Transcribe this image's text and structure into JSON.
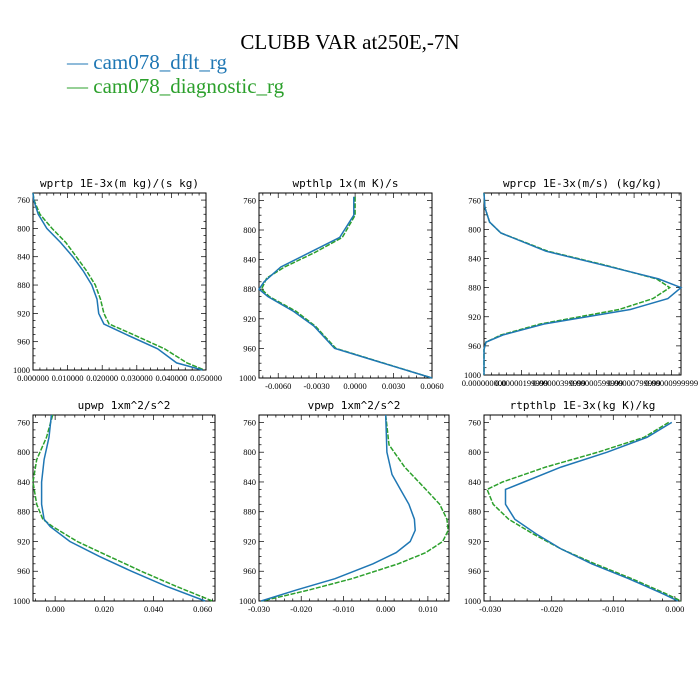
{
  "title": "CLUBB VAR at250E,-7N",
  "legend": [
    {
      "label": "cam078_dflt_rg",
      "color": "#1f77b4"
    },
    {
      "label": "cam078_diagnostic_rg",
      "color": "#2ca02c"
    }
  ],
  "chart_data": [
    {
      "type": "line",
      "title": "wprtp  1E-3x(m kg)/(s kg)",
      "xlim": [
        0,
        0.05
      ],
      "ylim": [
        1000,
        750
      ],
      "xticks": [
        "0.000000",
        "0.010000",
        "0.020000",
        "0.030000",
        "0.040000",
        "0.050000"
      ],
      "xtick_values": [
        0,
        0.01,
        0.02,
        0.03,
        0.04,
        0.05
      ],
      "yticks": [
        "760",
        "800",
        "840",
        "880",
        "920",
        "960",
        "1000"
      ],
      "series": [
        {
          "name": "cam078_dflt_rg",
          "y": [
            750,
            760,
            780,
            800,
            820,
            840,
            860,
            880,
            900,
            920,
            935,
            950,
            970,
            990,
            1000
          ],
          "x": [
            0.0,
            0.0002,
            0.0015,
            0.004,
            0.008,
            0.0115,
            0.0145,
            0.017,
            0.0185,
            0.019,
            0.0205,
            0.027,
            0.036,
            0.0415,
            0.049
          ]
        },
        {
          "name": "cam078_diagnostic_rg",
          "y": [
            750,
            760,
            780,
            800,
            820,
            840,
            860,
            880,
            900,
            920,
            935,
            950,
            970,
            990,
            1000
          ],
          "x": [
            0.0,
            0.0003,
            0.002,
            0.0055,
            0.0095,
            0.0125,
            0.0155,
            0.018,
            0.0195,
            0.0205,
            0.022,
            0.029,
            0.038,
            0.0445,
            0.0495
          ]
        }
      ]
    },
    {
      "type": "line",
      "title": "wpthlp  1x(m K)/s",
      "xlim": [
        -0.0075,
        0.006
      ],
      "ylim": [
        1000,
        750
      ],
      "xticks": [
        "-0.0060",
        "-0.0030",
        "0.0000",
        "0.0030",
        "0.0060"
      ],
      "xtick_values": [
        -0.006,
        -0.003,
        0.0,
        0.003,
        0.006
      ],
      "yticks": [
        "760",
        "800",
        "840",
        "880",
        "920",
        "960",
        "1000"
      ],
      "series": [
        {
          "name": "cam078_dflt_rg",
          "y": [
            755,
            780,
            810,
            830,
            850,
            870,
            880,
            890,
            910,
            930,
            960,
            1000
          ],
          "x": [
            -0.0001,
            -0.0001,
            -0.0012,
            -0.0035,
            -0.0058,
            -0.0071,
            -0.0075,
            -0.0068,
            -0.0048,
            -0.0032,
            -0.0016,
            0.006
          ]
        },
        {
          "name": "cam078_diagnostic_rg",
          "y": [
            755,
            780,
            810,
            830,
            850,
            865,
            880,
            890,
            910,
            930,
            960,
            1000
          ],
          "x": [
            0.0,
            0.0,
            -0.001,
            -0.0031,
            -0.0055,
            -0.0069,
            -0.0073,
            -0.0067,
            -0.0046,
            -0.0031,
            -0.0015,
            0.006
          ]
        }
      ]
    },
    {
      "type": "line",
      "title": "wprcp  1E-3x(m/s) (kg/kg)",
      "xlim": [
        0.0,
        1.05e-05
      ],
      "ylim": [
        1000,
        750
      ],
      "xticks": [
        "0.000000000",
        "0.00000199999",
        "0.00000399999",
        "0.00000599999",
        "0.00000799999",
        "0.00000999999"
      ],
      "xtick_values": [
        0.0,
        2e-06,
        4e-06,
        6e-06,
        8e-06,
        1e-05
      ],
      "yticks": [
        "760",
        "800",
        "840",
        "880",
        "920",
        "960",
        "1000"
      ],
      "series": [
        {
          "name": "cam078_dflt_rg",
          "y": [
            750,
            770,
            790,
            805,
            830,
            850,
            868,
            880,
            895,
            910,
            930,
            945,
            955,
            965,
            1000
          ],
          "x": [
            0.0,
            5e-08,
            3e-07,
            9e-07,
            3.3e-06,
            6.5e-06,
            9.3e-06,
            1.05e-05,
            9.8e-06,
            7.8e-06,
            3.2e-06,
            1e-06,
            1e-07,
            0.0,
            0.0
          ]
        },
        {
          "name": "cam078_diagnostic_rg",
          "y": [
            750,
            770,
            790,
            805,
            830,
            850,
            868,
            880,
            895,
            910,
            930,
            945,
            955,
            965,
            1000
          ],
          "x": [
            0.0,
            5e-08,
            3e-07,
            9e-07,
            3.4e-06,
            6.6e-06,
            9.2e-06,
            9.9e-06,
            9e-06,
            7.2e-06,
            3e-06,
            9e-07,
            1e-07,
            0.0,
            0.0
          ]
        }
      ]
    },
    {
      "type": "line",
      "title": "upwp  1xm^2/s^2",
      "xlim": [
        -0.009,
        0.065
      ],
      "ylim": [
        1000,
        750
      ],
      "xticks": [
        "0.000",
        "0.020",
        "0.040",
        "0.060"
      ],
      "xtick_values": [
        0.0,
        0.02,
        0.04,
        0.06
      ],
      "yticks": [
        "760",
        "800",
        "840",
        "880",
        "920",
        "960",
        "1000"
      ],
      "series": [
        {
          "name": "cam078_dflt_rg",
          "y": [
            750,
            780,
            810,
            840,
            870,
            890,
            900,
            920,
            940,
            960,
            980,
            1000
          ],
          "x": [
            -0.0015,
            -0.0025,
            -0.0045,
            -0.0055,
            -0.0055,
            -0.0045,
            -0.002,
            0.006,
            0.018,
            0.031,
            0.045,
            0.061
          ]
        },
        {
          "name": "cam078_diagnostic_rg",
          "y": [
            750,
            780,
            810,
            840,
            870,
            890,
            900,
            920,
            940,
            960,
            980,
            1000
          ],
          "x": [
            -0.001,
            -0.0035,
            -0.0075,
            -0.009,
            -0.0075,
            -0.005,
            -0.001,
            0.009,
            0.022,
            0.035,
            0.049,
            0.064
          ]
        }
      ]
    },
    {
      "type": "line",
      "title": "vpwp  1xm^2/s^2",
      "xlim": [
        -0.03,
        0.015
      ],
      "ylim": [
        1000,
        750
      ],
      "xticks": [
        "-0.030",
        "-0.020",
        "-0.010",
        "0.000",
        "0.010"
      ],
      "xtick_values": [
        -0.03,
        -0.02,
        -0.01,
        0.0,
        0.01
      ],
      "yticks": [
        "760",
        "800",
        "840",
        "880",
        "920",
        "960",
        "1000"
      ],
      "series": [
        {
          "name": "cam078_dflt_rg",
          "y": [
            750,
            800,
            830,
            850,
            870,
            890,
            905,
            920,
            935,
            950,
            970,
            985,
            1000
          ],
          "x": [
            0.0,
            0.0003,
            0.0015,
            0.0035,
            0.0055,
            0.0068,
            0.007,
            0.0058,
            0.0025,
            -0.003,
            -0.012,
            -0.021,
            -0.0295
          ]
        },
        {
          "name": "cam078_diagnostic_rg",
          "y": [
            750,
            790,
            820,
            850,
            870,
            890,
            905,
            920,
            935,
            950,
            970,
            985,
            1000
          ],
          "x": [
            0.0,
            0.0008,
            0.0045,
            0.0095,
            0.0128,
            0.0145,
            0.0148,
            0.0135,
            0.0095,
            0.003,
            -0.008,
            -0.018,
            -0.0292
          ]
        }
      ]
    },
    {
      "type": "line",
      "title": "rtpthlp  1E-3x(kg K)/kg",
      "xlim": [
        -0.031,
        0.001
      ],
      "ylim": [
        1000,
        750
      ],
      "xticks": [
        "-0.030",
        "-0.020",
        "-0.010",
        "0.000"
      ],
      "xtick_values": [
        -0.03,
        -0.02,
        -0.01,
        0.0
      ],
      "yticks": [
        "760",
        "800",
        "840",
        "880",
        "920",
        "960",
        "1000"
      ],
      "series": [
        {
          "name": "cam078_dflt_rg",
          "y": [
            760,
            780,
            800,
            820,
            840,
            850,
            870,
            890,
            910,
            930,
            950,
            970,
            990,
            1000
          ],
          "x": [
            -0.0005,
            -0.0045,
            -0.011,
            -0.0185,
            -0.0245,
            -0.0275,
            -0.0275,
            -0.026,
            -0.0225,
            -0.0185,
            -0.0135,
            -0.0075,
            -0.002,
            0.0005
          ]
        },
        {
          "name": "cam078_diagnostic_rg",
          "y": [
            760,
            780,
            800,
            820,
            840,
            850,
            870,
            890,
            910,
            930,
            950,
            970,
            990,
            1000
          ],
          "x": [
            -0.001,
            -0.005,
            -0.0125,
            -0.021,
            -0.028,
            -0.0305,
            -0.0295,
            -0.027,
            -0.023,
            -0.0185,
            -0.013,
            -0.007,
            -0.0015,
            0.001
          ]
        }
      ]
    }
  ]
}
